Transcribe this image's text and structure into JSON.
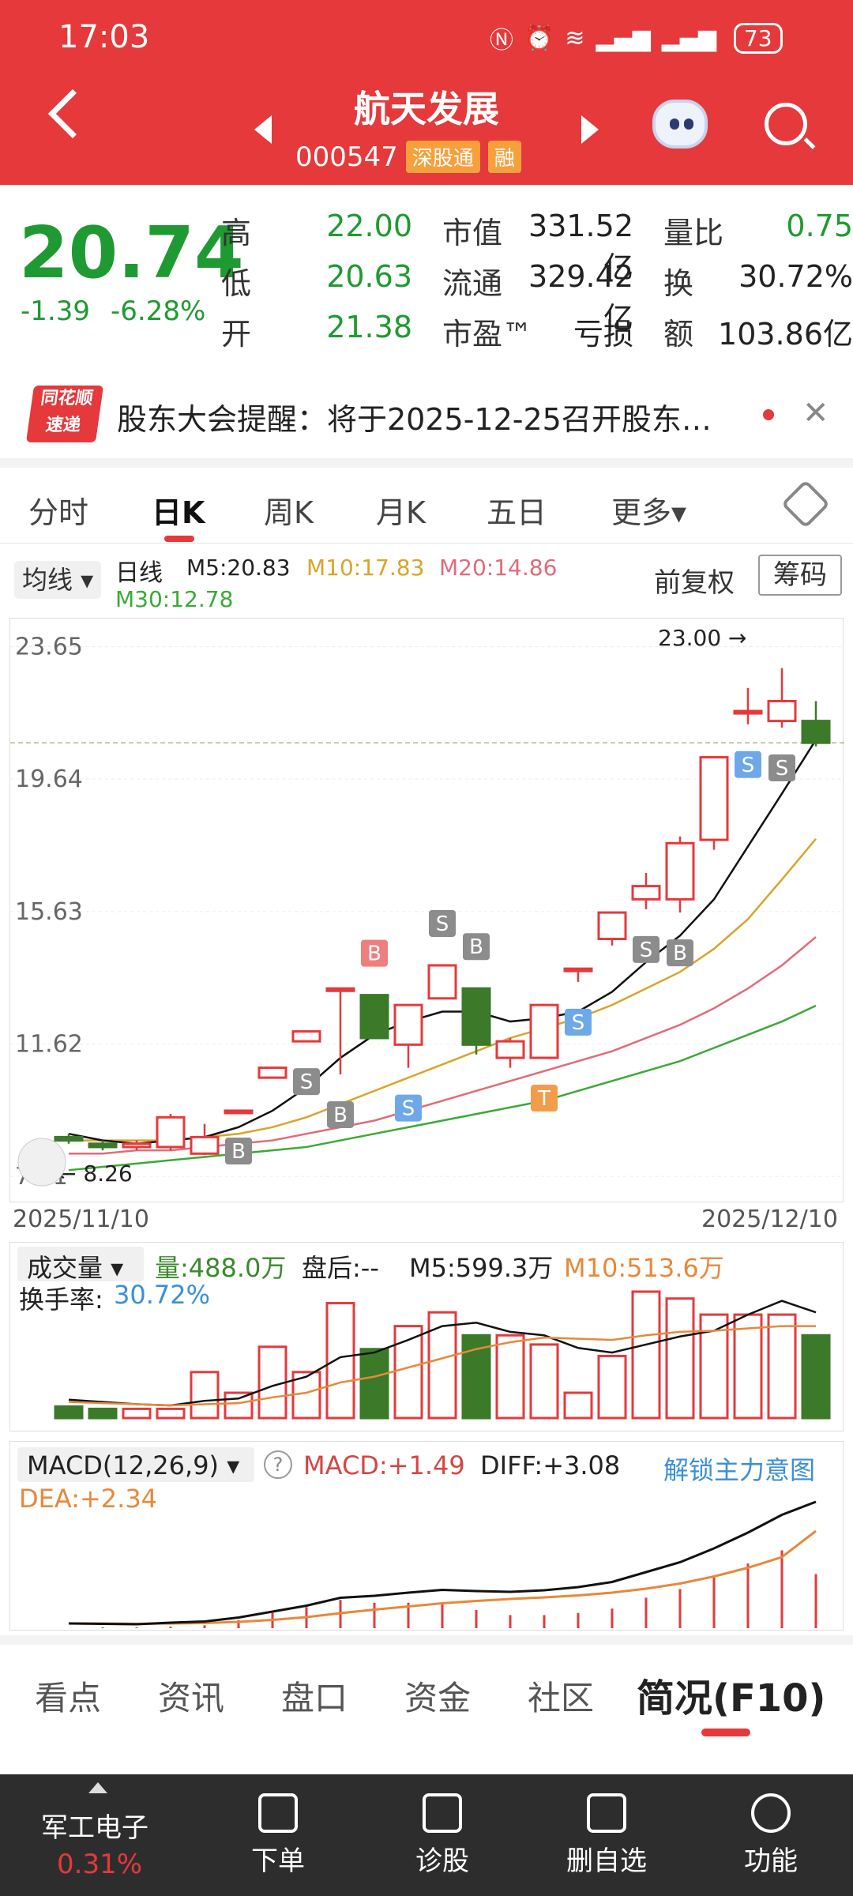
{
  "status": {
    "time": "17:03",
    "icons": [
      "nfc-icon",
      "alarm-icon",
      "wifi-icon",
      "5g-signal-icon",
      "4g-signal-icon"
    ],
    "battery": "73"
  },
  "header": {
    "title": "航天发展",
    "code": "000547",
    "tag1": "深股通",
    "tag2": "融"
  },
  "quote": {
    "price": "20.74",
    "change": "-1.39",
    "change_pct": "-6.28%",
    "rows": [
      {
        "l1": "高",
        "v1": "22.00",
        "l2": "市值",
        "v2": "331.52亿",
        "l3": "量比",
        "v3": "0.75"
      },
      {
        "l1": "低",
        "v1": "20.63",
        "l2": "流通",
        "v2": "329.42亿",
        "l3": "换",
        "v3": "30.72%"
      },
      {
        "l1": "开",
        "v1": "21.38",
        "l2": "市盈™",
        "v2": "亏损",
        "l3": "额",
        "v3": "103.86亿"
      }
    ],
    "colors": {
      "down": "#1f9a32",
      "up": "#e5393b"
    }
  },
  "notice": {
    "logo_line1": "同花顺",
    "logo_line2": "速递",
    "text": "股东大会提醒：将于2025-12-25召开股东…"
  },
  "tabs": [
    "分时",
    "日K",
    "周K",
    "月K",
    "五日",
    "更多▾"
  ],
  "ma": {
    "button": "均线 ▾",
    "kind": "日线",
    "m5": "M5:20.83",
    "m10": "M10:17.83",
    "m20": "M20:14.86",
    "m30": "M30:12.78",
    "adjust": "前复权",
    "chip": "筹码"
  },
  "chart_data": {
    "type": "candlestick",
    "y_ticks": [
      "23.65",
      "19.64",
      "15.63",
      "11.62",
      "7.61"
    ],
    "ylim": [
      6.8,
      24.5
    ],
    "start_date": "2025/11/10",
    "end_date": "2025/12/10",
    "high_label": "23.00",
    "low_label": "8.26",
    "candles": [
      {
        "o": 8.8,
        "c": 8.7,
        "h": 8.9,
        "l": 8.6
      },
      {
        "o": 8.6,
        "c": 8.5,
        "h": 8.7,
        "l": 8.4
      },
      {
        "o": 8.5,
        "c": 8.6,
        "h": 8.7,
        "l": 8.4
      },
      {
        "o": 8.5,
        "c": 9.4,
        "h": 9.5,
        "l": 8.4
      },
      {
        "o": 8.3,
        "c": 8.8,
        "h": 9.2,
        "l": 8.26
      },
      {
        "o": 9.6,
        "c": 9.6,
        "h": 9.6,
        "l": 9.6
      },
      {
        "o": 10.6,
        "c": 10.9,
        "h": 10.9,
        "l": 10.6
      },
      {
        "o": 11.7,
        "c": 12.0,
        "h": 12.0,
        "l": 11.7
      },
      {
        "o": 13.3,
        "c": 13.3,
        "h": 13.3,
        "l": 10.7
      },
      {
        "o": 13.1,
        "c": 11.8,
        "h": 13.1,
        "l": 11.8
      },
      {
        "o": 11.6,
        "c": 12.8,
        "h": 12.8,
        "l": 10.9
      },
      {
        "o": 13.0,
        "c": 14.0,
        "h": 14.0,
        "l": 13.0
      },
      {
        "o": 13.3,
        "c": 11.6,
        "h": 13.3,
        "l": 11.3
      },
      {
        "o": 11.2,
        "c": 11.7,
        "h": 11.8,
        "l": 10.9
      },
      {
        "o": 11.2,
        "c": 12.8,
        "h": 12.8,
        "l": 11.2
      },
      {
        "o": 13.9,
        "c": 13.9,
        "h": 13.9,
        "l": 13.5
      },
      {
        "o": 14.8,
        "c": 15.6,
        "h": 15.6,
        "l": 14.6
      },
      {
        "o": 16.0,
        "c": 16.4,
        "h": 16.8,
        "l": 15.7
      },
      {
        "o": 16.0,
        "c": 17.7,
        "h": 17.9,
        "l": 15.6
      },
      {
        "o": 17.8,
        "c": 20.3,
        "h": 20.3,
        "l": 17.5
      },
      {
        "o": 21.7,
        "c": 21.7,
        "h": 22.4,
        "l": 21.3
      },
      {
        "o": 21.4,
        "c": 22.0,
        "h": 23.0,
        "l": 21.2
      },
      {
        "o": 21.4,
        "c": 20.74,
        "h": 22.0,
        "l": 20.63
      }
    ],
    "ma5": [
      8.9,
      8.7,
      8.6,
      8.7,
      8.8,
      9.1,
      9.6,
      10.3,
      11.2,
      11.9,
      12.3,
      12.6,
      12.6,
      12.3,
      12.4,
      12.6,
      13.2,
      14.1,
      14.9,
      16.0,
      17.6,
      19.2,
      20.83
    ],
    "ma10": [
      8.7,
      8.7,
      8.7,
      8.7,
      8.8,
      8.9,
      9.1,
      9.4,
      9.8,
      10.2,
      10.6,
      11.0,
      11.4,
      11.8,
      12.1,
      12.4,
      12.8,
      13.3,
      13.8,
      14.5,
      15.4,
      16.6,
      17.83
    ],
    "ma20": [
      8.3,
      8.3,
      8.4,
      8.4,
      8.5,
      8.6,
      8.7,
      8.9,
      9.1,
      9.3,
      9.6,
      9.9,
      10.2,
      10.5,
      10.8,
      11.1,
      11.4,
      11.8,
      12.2,
      12.7,
      13.3,
      14.0,
      14.86
    ],
    "ma30": [
      7.8,
      7.9,
      8.0,
      8.1,
      8.2,
      8.3,
      8.4,
      8.5,
      8.7,
      8.9,
      9.1,
      9.3,
      9.5,
      9.7,
      9.9,
      10.2,
      10.5,
      10.8,
      11.1,
      11.5,
      11.9,
      12.3,
      12.78
    ],
    "signals": [
      {
        "i": 5,
        "label": "B",
        "pos": "below",
        "color": "#8c8c8c"
      },
      {
        "i": 7,
        "label": "S",
        "pos": "below",
        "color": "#8c8c8c"
      },
      {
        "i": 8,
        "label": "B",
        "pos": "below",
        "color": "#8c8c8c"
      },
      {
        "i": 9,
        "label": "B",
        "pos": "above",
        "color": "#ee7f7f"
      },
      {
        "i": 10,
        "label": "S",
        "pos": "below",
        "color": "#6fa8e9"
      },
      {
        "i": 11,
        "label": "S",
        "pos": "above",
        "color": "#8c8c8c"
      },
      {
        "i": 12,
        "label": "B",
        "pos": "above",
        "color": "#8c8c8c"
      },
      {
        "i": 14,
        "label": "T",
        "pos": "below",
        "color": "#f39c4c"
      },
      {
        "i": 15,
        "label": "S",
        "pos": "below",
        "color": "#6fa8e9"
      },
      {
        "i": 17,
        "label": "S",
        "pos": "below",
        "color": "#8c8c8c"
      },
      {
        "i": 18,
        "label": "B",
        "pos": "below",
        "color": "#8c8c8c"
      },
      {
        "i": 20,
        "label": "S",
        "pos": "below",
        "color": "#6fa8e9"
      },
      {
        "i": 21,
        "label": "S",
        "pos": "below",
        "color": "#8c8c8c"
      }
    ],
    "volume": [
      0.1,
      0.08,
      0.08,
      0.08,
      0.4,
      0.22,
      0.62,
      0.4,
      1.0,
      0.6,
      0.8,
      0.92,
      0.72,
      0.72,
      0.64,
      0.22,
      0.54,
      1.1,
      1.04,
      0.9,
      0.9,
      0.9,
      0.72
    ],
    "vol_m5": [
      0.16,
      0.14,
      0.12,
      0.11,
      0.15,
      0.17,
      0.28,
      0.36,
      0.53,
      0.57,
      0.68,
      0.8,
      0.83,
      0.75,
      0.72,
      0.61,
      0.57,
      0.64,
      0.71,
      0.76,
      0.9,
      1.02,
      0.92
    ],
    "vol_m10": [
      0.14,
      0.13,
      0.12,
      0.11,
      0.12,
      0.13,
      0.18,
      0.22,
      0.31,
      0.36,
      0.44,
      0.52,
      0.6,
      0.66,
      0.7,
      0.69,
      0.68,
      0.72,
      0.75,
      0.76,
      0.78,
      0.8,
      0.8
    ],
    "macd_diff": [
      0.0,
      -0.01,
      -0.02,
      0.02,
      0.05,
      0.15,
      0.3,
      0.45,
      0.65,
      0.7,
      0.78,
      0.85,
      0.82,
      0.8,
      0.84,
      0.92,
      1.05,
      1.3,
      1.55,
      1.9,
      2.3,
      2.75,
      3.08
    ],
    "macd_dea": [
      0.0,
      0.0,
      -0.01,
      0.0,
      0.01,
      0.04,
      0.09,
      0.16,
      0.26,
      0.35,
      0.43,
      0.51,
      0.57,
      0.62,
      0.66,
      0.71,
      0.78,
      0.88,
      1.01,
      1.19,
      1.41,
      1.68,
      2.34
    ],
    "macd_hist": [
      0.0,
      -0.02,
      -0.02,
      0.04,
      0.08,
      0.22,
      0.42,
      0.58,
      0.78,
      0.7,
      0.7,
      0.68,
      0.5,
      0.36,
      0.36,
      0.42,
      0.54,
      0.84,
      1.08,
      1.42,
      1.78,
      2.14,
      1.49
    ]
  },
  "volume": {
    "title": "成交量 ▾",
    "vol": "量:488.0万",
    "after": "盘后:-- ",
    "m5": "M5:599.3万",
    "m10": "M10:513.6万",
    "turnover_label": "换手率:",
    "turnover": "30.72%"
  },
  "macd": {
    "title": "MACD(12,26,9) ▾",
    "help": "?",
    "macd": "MACD:+1.49",
    "diff": "DIFF:+3.08",
    "unlock": "解锁主力意图",
    "dea": "DEA:+2.34"
  },
  "bottom_tabs": [
    "看点",
    "资讯",
    "盘口",
    "资金",
    "社区",
    "简况(F10)"
  ],
  "nav": {
    "sector_name": "军工电子",
    "sector_pct": "0.31%",
    "items": [
      "下单",
      "诊股",
      "删自选",
      "功能"
    ]
  }
}
